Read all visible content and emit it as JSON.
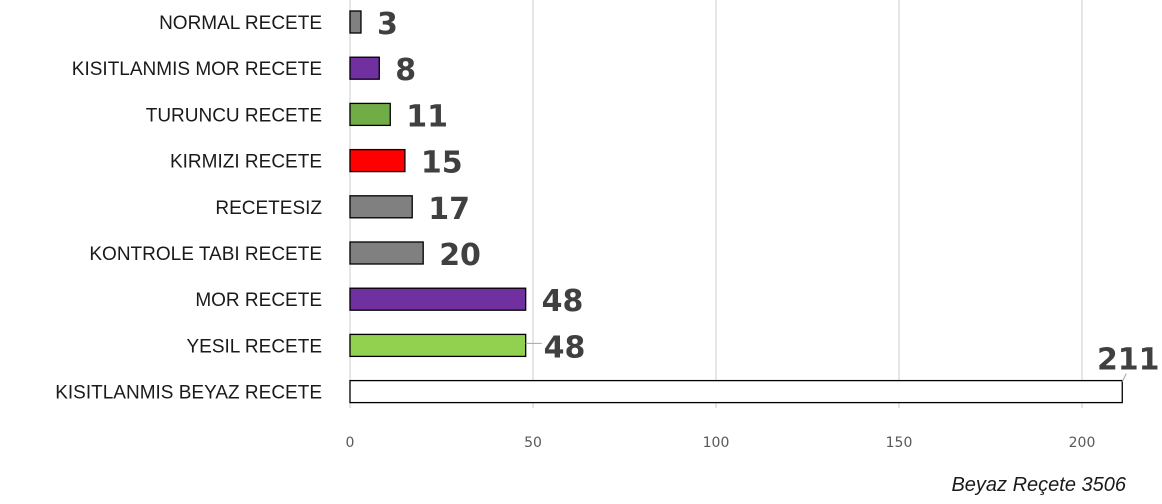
{
  "chart_data": {
    "type": "bar",
    "orientation": "horizontal",
    "categories": [
      "NORMAL RECETE",
      "KISITLANMIS MOR RECETE",
      "TURUNCU RECETE",
      "KIRMIZI RECETE",
      "RECETESIZ",
      "KONTROLE TABI RECETE",
      "MOR RECETE",
      "YESIL RECETE",
      "KISITLANMIS BEYAZ RECETE"
    ],
    "values": [
      3,
      8,
      11,
      15,
      17,
      20,
      48,
      48,
      211
    ],
    "colors": [
      "#808080",
      "#7030A0",
      "#70AD47",
      "#FF0000",
      "#808080",
      "#808080",
      "#7030A0",
      "#92D050",
      "#FFFFFF"
    ],
    "data_labels": [
      "3",
      "8",
      "11",
      "15",
      "17",
      "20",
      "48",
      "48",
      "211"
    ],
    "x_ticks": [
      "0",
      "50",
      "100",
      "150",
      "200"
    ],
    "xlim": [
      0,
      211
    ],
    "grid": "vertical",
    "legend": "none",
    "title": "",
    "xlabel": "",
    "ylabel": ""
  },
  "footnote": "Beyaz Reçete 3506"
}
